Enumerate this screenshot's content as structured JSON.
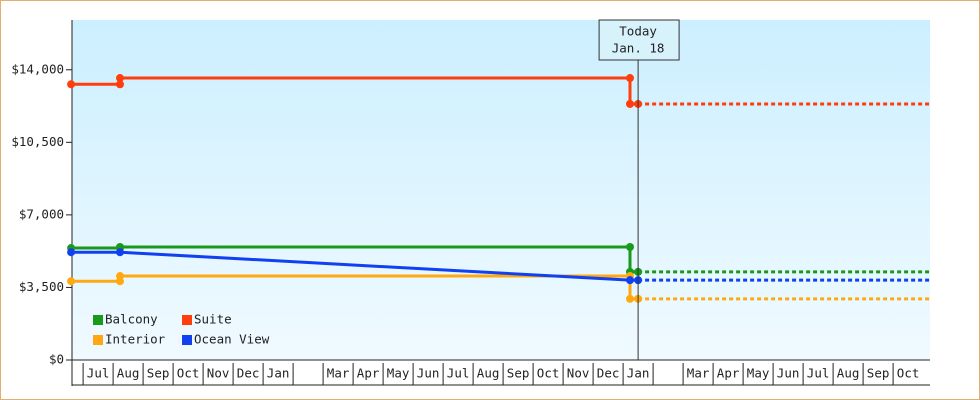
{
  "chart_data": {
    "type": "line",
    "step": true,
    "categories": [
      "Jul",
      "Aug",
      "Sep",
      "Oct",
      "Nov",
      "Dec",
      "Jan",
      null,
      "Mar",
      "Apr",
      "May",
      "Jun",
      "Jul",
      "Aug",
      "Sep",
      "Oct",
      "Nov",
      "Dec",
      "Jan",
      null,
      "Mar",
      "Apr",
      "May",
      "Jun",
      "Jul",
      "Aug",
      "Sep",
      "Oct"
    ],
    "xlim": [
      -0.37,
      28.23
    ],
    "ylim": [
      0,
      16400
    ],
    "yticks": [
      {
        "value": 0,
        "label": "$0"
      },
      {
        "value": 3500,
        "label": "$3,500"
      },
      {
        "value": 7000,
        "label": "$7,000"
      },
      {
        "value": 10500,
        "label": "$10,500"
      },
      {
        "value": 14000,
        "label": "$14,000"
      }
    ],
    "annotation": {
      "label": "Today",
      "date": "Jan. 18",
      "x": 18.5
    },
    "legend": "bottom-left",
    "series": [
      {
        "name": "Balcony",
        "color": "#1a9a1a",
        "x": [
          -0.4,
          1.23,
          1.23,
          18.23,
          18.23,
          18.5
        ],
        "values": [
          5400,
          5400,
          5450,
          5450,
          4250,
          4250
        ],
        "forecast_x": [
          18.5,
          28.23
        ],
        "forecast_values": [
          4250,
          4250
        ]
      },
      {
        "name": "Suite",
        "color": "#ff3d0d",
        "x": [
          -0.4,
          1.23,
          1.23,
          18.23,
          18.23,
          18.5
        ],
        "values": [
          13300,
          13300,
          13600,
          13600,
          12350,
          12350
        ],
        "forecast_x": [
          18.5,
          28.23
        ],
        "forecast_values": [
          12350,
          12350
        ]
      },
      {
        "name": "Interior",
        "color": "#ffa812",
        "x": [
          -0.4,
          1.23,
          1.23,
          18.23,
          18.23,
          18.5
        ],
        "values": [
          3800,
          3800,
          4050,
          4050,
          2950,
          2950
        ],
        "forecast_x": [
          18.5,
          28.23
        ],
        "forecast_values": [
          2950,
          2950
        ]
      },
      {
        "name": "Ocean View",
        "color": "#1040f0",
        "x": [
          -0.4,
          1.23,
          18.23,
          18.5
        ],
        "values": [
          5200,
          5200,
          3850,
          3850
        ],
        "forecast_x": [
          18.5,
          28.23
        ],
        "forecast_values": [
          3850,
          3850
        ]
      }
    ]
  }
}
